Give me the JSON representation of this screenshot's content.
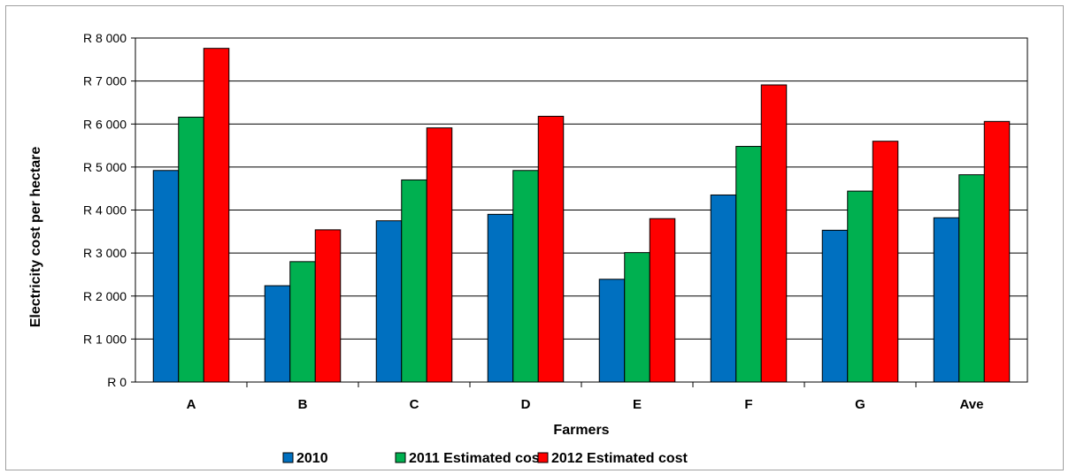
{
  "chart_data": {
    "type": "bar",
    "xlabel": "Farmers",
    "ylabel": "Electricity cost per hectare",
    "ylim": [
      0,
      8000
    ],
    "yticks": [
      0,
      1000,
      2000,
      3000,
      4000,
      5000,
      6000,
      7000,
      8000
    ],
    "ytick_labels": [
      "R 0",
      "R 1 000",
      "R 2 000",
      "R 3 000",
      "R 4 000",
      "R 5 000",
      "R 6 000",
      "R 7 000",
      "R 8 000"
    ],
    "grid": true,
    "legend_position": "bottom",
    "categories": [
      "A",
      "B",
      "C",
      "D",
      "E",
      "F",
      "G",
      "Ave"
    ],
    "series": [
      {
        "name": "2010",
        "color": "#0070C0",
        "values": [
          4920,
          2240,
          3750,
          3900,
          2390,
          4350,
          3530,
          3820
        ]
      },
      {
        "name": "2011 Estimated cost",
        "color": "#00B050",
        "values": [
          6160,
          2800,
          4700,
          4920,
          3010,
          5480,
          4440,
          4820
        ]
      },
      {
        "name": "2012 Estimated cost",
        "color": "#FF0000",
        "values": [
          7760,
          3540,
          5910,
          6180,
          3800,
          6910,
          5600,
          6060
        ]
      }
    ]
  }
}
